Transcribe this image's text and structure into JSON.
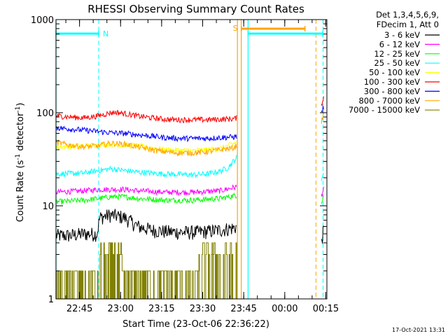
{
  "chart_data": {
    "type": "line",
    "title": "RHESSI Observing Summary Count Rates",
    "xlabel": "Start Time (23-Oct-06 22:36:22)",
    "ylabel": "Count Rate (s",
    "ylabel_sup1": "-1",
    "ylabel_mid": " detector",
    "ylabel_sup2": "-1",
    "ylabel_end": ")",
    "y_scale": "log",
    "ylim": [
      1,
      1000
    ],
    "x_minutes_range": [
      0,
      99
    ],
    "x_ticks": [
      {
        "min": 8.6,
        "label": "22:45"
      },
      {
        "min": 23.6,
        "label": "23:00"
      },
      {
        "min": 38.6,
        "label": "23:15"
      },
      {
        "min": 53.6,
        "label": "23:30"
      },
      {
        "min": 68.6,
        "label": "23:45"
      },
      {
        "min": 83.6,
        "label": "00:00"
      },
      {
        "min": 98.6,
        "label": "00:15"
      }
    ],
    "y_ticks": [
      {
        "value": 1,
        "label": "1"
      },
      {
        "value": 10,
        "label": "10"
      },
      {
        "value": 100,
        "label": "100"
      },
      {
        "value": 1000,
        "label": "1000"
      }
    ],
    "legend_header": [
      "Det 1,3,4,5,6,9,",
      "FDecim 1, Att 0"
    ],
    "legend_placement": "right",
    "series": [
      {
        "name": "3 - 6 keV",
        "color": "#000000",
        "segments": [
          {
            "x": [
              0,
              5,
              10,
              15,
              16,
              20,
              25,
              30,
              35,
              40,
              45,
              50,
              55,
              60,
              65,
              66
            ],
            "y": [
              4.8,
              4.8,
              5,
              5,
              7.5,
              8,
              7.5,
              6,
              5.5,
              5.3,
              5.2,
              5.2,
              5.3,
              5.5,
              5.8,
              6
            ]
          },
          {
            "x": [
              97,
              97.8
            ],
            "y": [
              4,
              5.5
            ]
          }
        ]
      },
      {
        "name": "6 - 12 keV",
        "color": "#ff00ff",
        "segments": [
          {
            "x": [
              0,
              10,
              16,
              20,
              25,
              30,
              40,
              50,
              60,
              66
            ],
            "y": [
              14,
              14.5,
              15,
              15,
              15,
              14.5,
              14,
              14,
              14.5,
              16
            ]
          },
          {
            "x": [
              97,
              97.8
            ],
            "y": [
              13,
              15
            ]
          }
        ]
      },
      {
        "name": "12 - 25 keV",
        "color": "#00ff00",
        "segments": [
          {
            "x": [
              0,
              10,
              16,
              20,
              25,
              30,
              40,
              50,
              60,
              66
            ],
            "y": [
              11,
              11.5,
              12,
              12.5,
              12.5,
              12,
              11.5,
              11.5,
              12,
              13
            ]
          },
          {
            "x": [
              97,
              97.8
            ],
            "y": [
              11,
              13
            ]
          }
        ]
      },
      {
        "name": "25 - 50 keV",
        "color": "#00ffff",
        "segments": [
          {
            "x": [
              0,
              10,
              16,
              20,
              25,
              30,
              40,
              50,
              55,
              60,
              63,
              66
            ],
            "y": [
              22,
              22.5,
              24,
              25,
              24,
              23,
              22,
              21.5,
              22,
              23.5,
              26,
              33
            ]
          },
          {
            "x": [
              97,
              97.8
            ],
            "y": [
              18,
              24
            ]
          }
        ]
      },
      {
        "name": "50 - 100 keV",
        "color": "#ffff00",
        "segments": [
          {
            "x": [
              0,
              10,
              20,
              30,
              40,
              50,
              60,
              66
            ],
            "y": [
              43,
              44,
              46,
              44,
              40,
              39,
              41,
              48
            ]
          }
        ]
      },
      {
        "name": "100 - 300 keV",
        "color": "#ff0000",
        "segments": [
          {
            "x": [
              0,
              5,
              10,
              15,
              20,
              22,
              25,
              30,
              35,
              40,
              45,
              50,
              55,
              60,
              65,
              66
            ],
            "y": [
              93,
              90,
              88,
              92,
              100,
              101,
              98,
              92,
              88,
              85,
              84,
              84,
              84,
              85,
              86,
              88
            ]
          },
          {
            "x": [
              97,
              97.8
            ],
            "y": [
              120,
              150
            ]
          }
        ]
      },
      {
        "name": "300 - 800 keV",
        "color": "#0000ff",
        "segments": [
          {
            "x": [
              0,
              5,
              10,
              15,
              20,
              25,
              30,
              35,
              40,
              45,
              50,
              55,
              60,
              65,
              66
            ],
            "y": [
              69,
              67,
              65,
              63,
              61,
              60,
              58,
              56,
              54,
              53,
              53,
              53,
              54,
              55,
              56
            ]
          },
          {
            "x": [
              97,
              97.8
            ],
            "y": [
              100,
              115
            ]
          }
        ]
      },
      {
        "name": "800 - 7000 keV",
        "color": "#ffa500",
        "segments": [
          {
            "x": [
              0,
              5,
              10,
              15,
              20,
              25,
              30,
              35,
              40,
              45,
              50,
              55,
              60,
              65,
              66
            ],
            "y": [
              48,
              45,
              43,
              44,
              47,
              46,
              43,
              40,
              38,
              37,
              37,
              38,
              40,
              42,
              44
            ]
          },
          {
            "x": [
              97,
              97.8
            ],
            "y": [
              80,
              100
            ]
          }
        ]
      },
      {
        "name": "7000 - 15000 keV",
        "color": "#808000",
        "segments": [
          {
            "x": [
              0,
              4,
              8,
              12,
              16,
              18,
              20,
              24,
              28,
              32,
              36,
              40,
              44,
              48,
              52,
              56,
              60,
              64,
              66
            ],
            "y": [
              1.5,
              2,
              1.8,
              1.6,
              2.5,
              2.8,
              3,
              2.5,
              2,
              2,
              1.8,
              2,
              2.5,
              2.2,
              2.5,
              2.8,
              2.5,
              3,
              2.8
            ]
          }
        ]
      }
    ],
    "annotations": {
      "night_label": "N",
      "saa_label": "S",
      "night_bars": [
        [
          0,
          15.6
        ],
        [
          70.2,
          97.5
        ]
      ],
      "saa_bar": [
        67.7,
        91
      ],
      "cyan_dashed": [
        15.6,
        97.6
      ],
      "cyan_solid": [
        0,
        70.2
      ],
      "orange_dashed": [
        95
      ],
      "orange_solid": [
        66.3,
        67.7
      ]
    },
    "grid": false,
    "timestamp": "17-Oct-2021 13:31"
  }
}
